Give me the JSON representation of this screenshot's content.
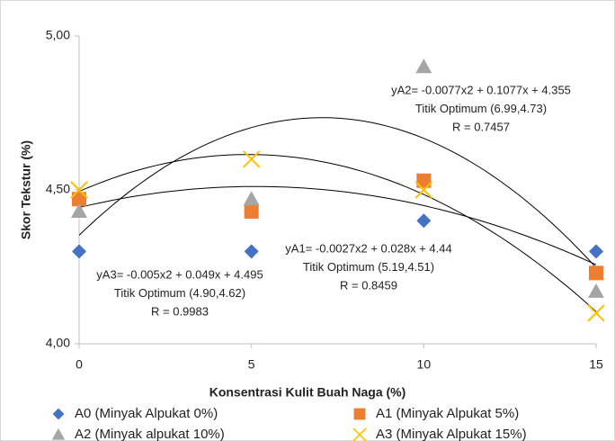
{
  "chart_data": {
    "type": "scatter",
    "x_label": "Konsentrasi Kulit Buah Naga (%)",
    "y_label": "Skor Tekstur (%)",
    "x": [
      0,
      5,
      10,
      15
    ],
    "xlim": [
      0,
      15
    ],
    "xticks": [
      0,
      5,
      10,
      15
    ],
    "ylim": [
      4,
      5
    ],
    "yticks": [
      {
        "value": 4,
        "label": "4,00"
      },
      {
        "value": 4.5,
        "label": "4,50"
      },
      {
        "value": 5,
        "label": "5,00"
      }
    ],
    "series": [
      {
        "name": "A0 (Minyak Alpukat 0%)",
        "color": "#4472c4",
        "marker": "diamond",
        "values": [
          4.3,
          4.3,
          4.4,
          4.3
        ],
        "trendline": false
      },
      {
        "name": "A1 (Minyak Alpukat 5%)",
        "color": "#ed7d31",
        "marker": "square",
        "values": [
          4.47,
          4.43,
          4.53,
          4.23
        ],
        "trendline": true
      },
      {
        "name": "A2 (Minyak alpukat 10%)",
        "color": "#a5a5a5",
        "marker": "triangle",
        "values": [
          4.43,
          4.47,
          4.9,
          4.17
        ],
        "trendline": true
      },
      {
        "name": "A3 (Minyak Alpukat 15%)",
        "color": "#ffc000",
        "marker": "x",
        "values": [
          4.5,
          4.6,
          4.5,
          4.1
        ],
        "trendline": true
      }
    ],
    "annotations": [
      {
        "lines": [
          "yA2= -0.0077x2 + 0.1077x + 4.355",
          "Titik Optimum (6.99,4.73)",
          "R = 0.7457"
        ]
      },
      {
        "lines": [
          "yA1= -0.0027x2 + 0.028x + 4.44",
          "Titik Optimum (5.19,4.51)",
          "R = 0.8459"
        ]
      },
      {
        "lines": [
          "yA3= -0.005x2 + 0.049x + 4.495",
          "Titik Optimum (4.90,4.62)",
          "R = 0.9983"
        ]
      }
    ]
  }
}
